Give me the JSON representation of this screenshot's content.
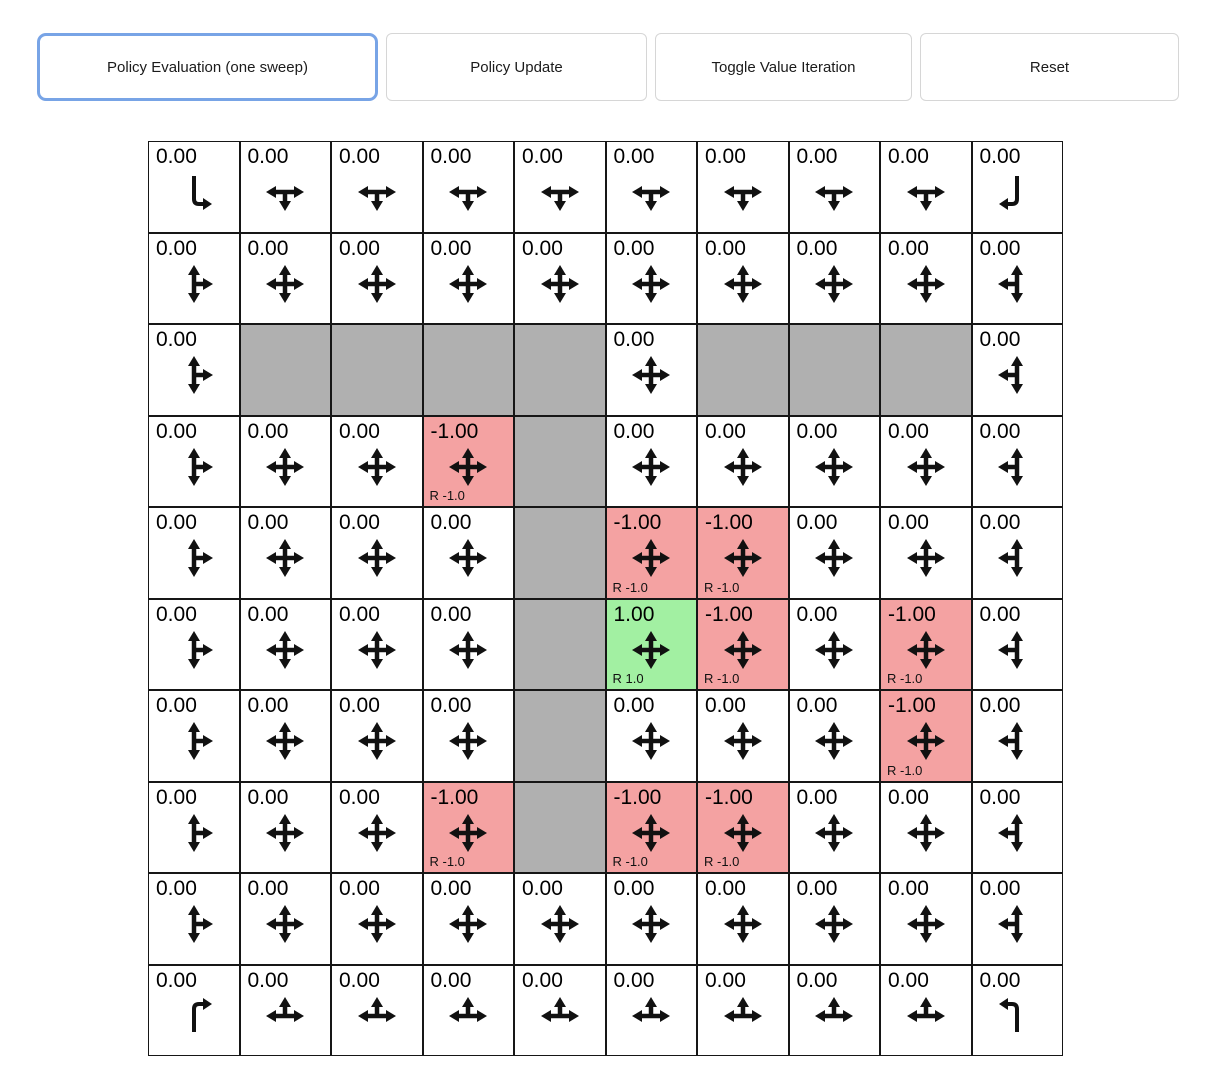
{
  "toolbar": {
    "buttons": [
      {
        "label": "Policy Evaluation (one sweep)",
        "selected": true
      },
      {
        "label": "Policy Update",
        "selected": false
      },
      {
        "label": "Toggle Value Iteration",
        "selected": false
      },
      {
        "label": "Reset",
        "selected": false
      }
    ]
  },
  "grid": {
    "rows": 10,
    "cols": 10,
    "colors": {
      "wall": "#b0b0b0",
      "negative": "#f4a2a2",
      "positive": "#a2f0a2",
      "grid_border": "#161616",
      "accent": "#78a4e6",
      "arrow": "#111111"
    },
    "policy_arrows": {
      "corner_top_left": [
        "down",
        "right"
      ],
      "corner_top_right": [
        "down",
        "left"
      ],
      "corner_bottom_left": [
        "up",
        "right"
      ],
      "corner_bottom_right": [
        "up",
        "left"
      ],
      "top_edge": [
        "left",
        "down",
        "right"
      ],
      "bottom_edge": [
        "left",
        "up",
        "right"
      ],
      "left_edge": [
        "up",
        "down",
        "right"
      ],
      "right_edge": [
        "up",
        "down",
        "left"
      ],
      "interior": [
        "up",
        "down",
        "left",
        "right"
      ]
    },
    "cells": [
      [
        {
          "value": "0.00"
        },
        {
          "value": "0.00"
        },
        {
          "value": "0.00"
        },
        {
          "value": "0.00"
        },
        {
          "value": "0.00"
        },
        {
          "value": "0.00"
        },
        {
          "value": "0.00"
        },
        {
          "value": "0.00"
        },
        {
          "value": "0.00"
        },
        {
          "value": "0.00"
        }
      ],
      [
        {
          "value": "0.00"
        },
        {
          "value": "0.00"
        },
        {
          "value": "0.00"
        },
        {
          "value": "0.00"
        },
        {
          "value": "0.00"
        },
        {
          "value": "0.00"
        },
        {
          "value": "0.00"
        },
        {
          "value": "0.00"
        },
        {
          "value": "0.00"
        },
        {
          "value": "0.00"
        }
      ],
      [
        {
          "value": "0.00"
        },
        {
          "wall": true
        },
        {
          "wall": true
        },
        {
          "wall": true
        },
        {
          "wall": true
        },
        {
          "value": "0.00"
        },
        {
          "wall": true
        },
        {
          "wall": true
        },
        {
          "wall": true
        },
        {
          "value": "0.00"
        }
      ],
      [
        {
          "value": "0.00"
        },
        {
          "value": "0.00"
        },
        {
          "value": "0.00"
        },
        {
          "value": "-1.00",
          "reward": "R -1.0",
          "color": "negative"
        },
        {
          "wall": true
        },
        {
          "value": "0.00"
        },
        {
          "value": "0.00"
        },
        {
          "value": "0.00"
        },
        {
          "value": "0.00"
        },
        {
          "value": "0.00"
        }
      ],
      [
        {
          "value": "0.00"
        },
        {
          "value": "0.00"
        },
        {
          "value": "0.00"
        },
        {
          "value": "0.00"
        },
        {
          "wall": true
        },
        {
          "value": "-1.00",
          "reward": "R -1.0",
          "color": "negative"
        },
        {
          "value": "-1.00",
          "reward": "R -1.0",
          "color": "negative"
        },
        {
          "value": "0.00"
        },
        {
          "value": "0.00"
        },
        {
          "value": "0.00"
        }
      ],
      [
        {
          "value": "0.00"
        },
        {
          "value": "0.00"
        },
        {
          "value": "0.00"
        },
        {
          "value": "0.00"
        },
        {
          "wall": true
        },
        {
          "value": "1.00",
          "reward": "R 1.0",
          "color": "positive"
        },
        {
          "value": "-1.00",
          "reward": "R -1.0",
          "color": "negative"
        },
        {
          "value": "0.00"
        },
        {
          "value": "-1.00",
          "reward": "R -1.0",
          "color": "negative"
        },
        {
          "value": "0.00"
        }
      ],
      [
        {
          "value": "0.00"
        },
        {
          "value": "0.00"
        },
        {
          "value": "0.00"
        },
        {
          "value": "0.00"
        },
        {
          "wall": true
        },
        {
          "value": "0.00"
        },
        {
          "value": "0.00"
        },
        {
          "value": "0.00"
        },
        {
          "value": "-1.00",
          "reward": "R -1.0",
          "color": "negative"
        },
        {
          "value": "0.00"
        }
      ],
      [
        {
          "value": "0.00"
        },
        {
          "value": "0.00"
        },
        {
          "value": "0.00"
        },
        {
          "value": "-1.00",
          "reward": "R -1.0",
          "color": "negative"
        },
        {
          "wall": true
        },
        {
          "value": "-1.00",
          "reward": "R -1.0",
          "color": "negative"
        },
        {
          "value": "-1.00",
          "reward": "R -1.0",
          "color": "negative"
        },
        {
          "value": "0.00"
        },
        {
          "value": "0.00"
        },
        {
          "value": "0.00"
        }
      ],
      [
        {
          "value": "0.00"
        },
        {
          "value": "0.00"
        },
        {
          "value": "0.00"
        },
        {
          "value": "0.00"
        },
        {
          "value": "0.00"
        },
        {
          "value": "0.00"
        },
        {
          "value": "0.00"
        },
        {
          "value": "0.00"
        },
        {
          "value": "0.00"
        },
        {
          "value": "0.00"
        }
      ],
      [
        {
          "value": "0.00"
        },
        {
          "value": "0.00"
        },
        {
          "value": "0.00"
        },
        {
          "value": "0.00"
        },
        {
          "value": "0.00"
        },
        {
          "value": "0.00"
        },
        {
          "value": "0.00"
        },
        {
          "value": "0.00"
        },
        {
          "value": "0.00"
        },
        {
          "value": "0.00"
        }
      ]
    ]
  }
}
